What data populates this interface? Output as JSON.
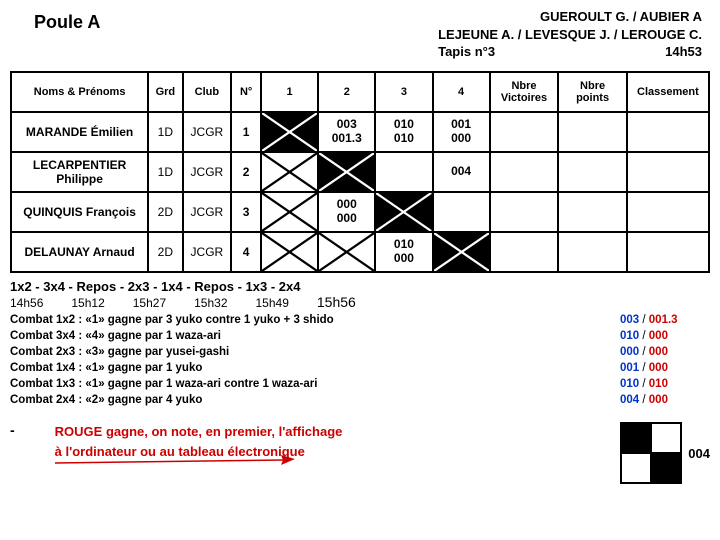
{
  "title": "Poule A",
  "officials": {
    "line1": "GUEROULT G. / AUBIER A",
    "line2": "LEJEUNE A. / LEVESQUE J. / LEROUGE C.",
    "line3_left": "Tapis n°3",
    "line3_right": "14h53"
  },
  "columns": {
    "name": "Noms & Prénoms",
    "grd": "Grd",
    "club": "Club",
    "num": "N°",
    "c1": "1",
    "c2": "2",
    "c3": "3",
    "c4": "4",
    "vict": "Nbre Victoires",
    "pts": "Nbre points",
    "rank": "Classement"
  },
  "rows": [
    {
      "name": "MARANDE Émilien",
      "grd": "1D",
      "club": "JCGR",
      "num": "1",
      "cells": {
        "1": {
          "type": "black"
        },
        "2": {
          "type": "score",
          "l1": "003",
          "l2": "001.3"
        },
        "3": {
          "type": "score",
          "l1": "010",
          "l2": "010"
        },
        "4": {
          "type": "score",
          "l1": "001",
          "l2": "000"
        }
      }
    },
    {
      "name": "LECARPENTIER Philippe",
      "grd": "1D",
      "club": "JCGR",
      "num": "2",
      "cells": {
        "1": {
          "type": "x"
        },
        "2": {
          "type": "black"
        },
        "3": {
          "type": "empty"
        },
        "4": {
          "type": "score",
          "l1": "004",
          "l2": ""
        }
      }
    },
    {
      "name": "QUINQUIS François",
      "grd": "2D",
      "club": "JCGR",
      "num": "3",
      "cells": {
        "1": {
          "type": "x"
        },
        "2": {
          "type": "score",
          "l1": "000",
          "l2": "000"
        },
        "3": {
          "type": "black"
        },
        "4": {
          "type": "empty"
        }
      }
    },
    {
      "name": "DELAUNAY Arnaud",
      "grd": "2D",
      "club": "JCGR",
      "num": "4",
      "cells": {
        "1": {
          "type": "x"
        },
        "2": {
          "type": "x"
        },
        "3": {
          "type": "score",
          "l1": "010",
          "l2": "000"
        },
        "4": {
          "type": "black"
        }
      }
    }
  ],
  "schedule": "1x2  -  3x4  -  Repos  -  2x3  -  1x4  -  Repos  -  1x3  -  2x4",
  "times": [
    "14h56",
    "15h12",
    "15h27",
    "15h32",
    "15h49",
    "15h56"
  ],
  "combats": [
    {
      "t": "Combat 1x2 : «1» gagne par 3 yuko contre 1 yuko + 3 shido",
      "b": "003",
      "r": "001.3"
    },
    {
      "t": "Combat 3x4 : «4» gagne par 1 waza-ari",
      "b": "010",
      "r": "000"
    },
    {
      "t": "Combat 2x3 : «3» gagne par yusei-gashi",
      "b": "000",
      "r": "000"
    },
    {
      "t": "Combat 1x4 : «1» gagne par 1 yuko",
      "b": "001",
      "r": "000"
    },
    {
      "t": "Combat 1x3 : «1» gagne par 1 waza-ari contre 1 waza-ari",
      "b": "010",
      "r": "010"
    },
    {
      "t": "Combat 2x4 : «2» gagne par 4 yuko",
      "b": "004",
      "r": "000"
    }
  ],
  "note": {
    "l1": "ROUGE gagne, on note, en premier, l'affichage",
    "l2": "à l'ordinateur ou au tableau électronique"
  },
  "mini_label": "004",
  "colors": {
    "blue": "#0033cc",
    "red": "#cc0000"
  }
}
